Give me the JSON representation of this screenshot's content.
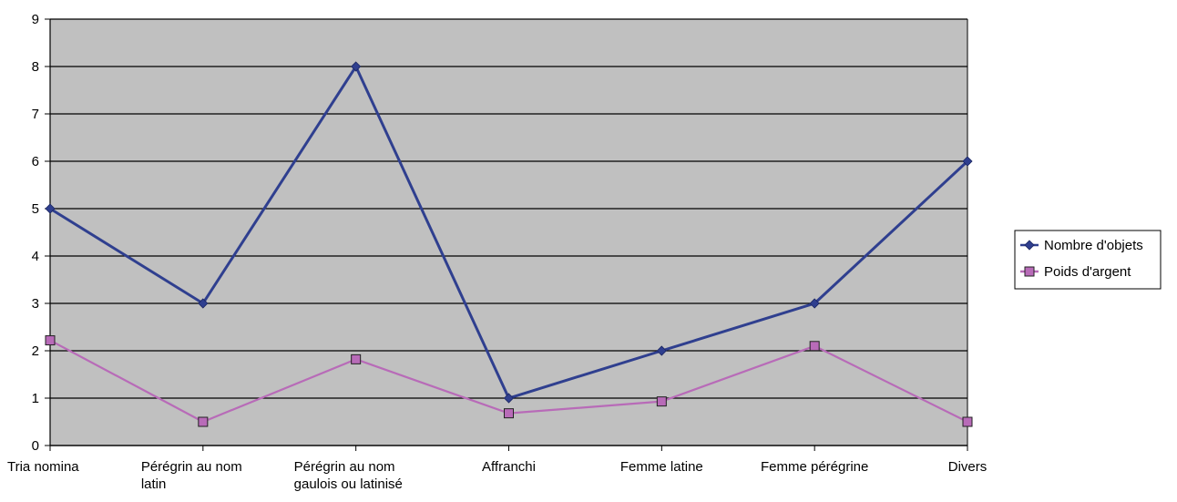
{
  "chart_data": {
    "type": "line",
    "title": "",
    "xlabel": "",
    "ylabel": "",
    "categories": [
      [
        "Tria nomina"
      ],
      [
        "Pérégrin au nom",
        "latin"
      ],
      [
        "Pérégrin au nom",
        "gaulois ou latinisé"
      ],
      [
        "Affranchi"
      ],
      [
        "Femme latine"
      ],
      [
        "Femme pérégrine"
      ],
      [
        "Divers"
      ]
    ],
    "ylim": [
      0,
      9
    ],
    "yticks": [
      0,
      1,
      2,
      3,
      4,
      5,
      6,
      7,
      8,
      9
    ],
    "grid": "horizontal",
    "legend_position": "right",
    "plot_background": "#c0c0c0",
    "series": [
      {
        "name": "Nombre d'objets",
        "color": "#2f3f8f",
        "marker": "diamond",
        "values": [
          5,
          3,
          8,
          1,
          2,
          3,
          6
        ]
      },
      {
        "name": "Poids d'argent",
        "color": "#b86bb8",
        "marker": "square",
        "values": [
          2.22,
          0.5,
          1.82,
          0.68,
          0.93,
          2.1,
          0.5
        ]
      }
    ]
  }
}
